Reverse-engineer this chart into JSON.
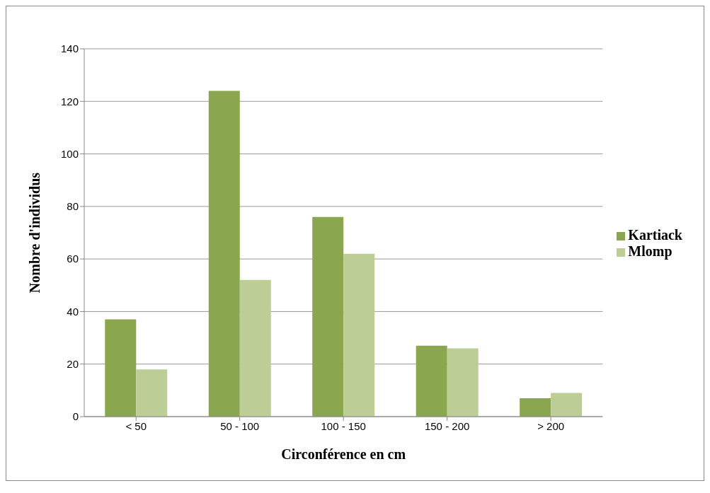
{
  "chart_data": {
    "type": "bar",
    "xlabel": "Circonférence en cm",
    "ylabel": "Nombre d'individus",
    "categories": [
      "< 50",
      "50 - 100",
      "100 - 150",
      "150 - 200",
      "> 200"
    ],
    "series": [
      {
        "name": "Kartiack",
        "color": "#8aa64e",
        "values": [
          37,
          124,
          76,
          27,
          7
        ]
      },
      {
        "name": "Mlomp",
        "color": "#bccd96",
        "values": [
          18,
          52,
          62,
          26,
          9
        ]
      }
    ],
    "ylim": [
      0,
      140
    ],
    "yticks": [
      0,
      20,
      40,
      60,
      80,
      100,
      120,
      140
    ],
    "grid": "y",
    "legend": "right"
  }
}
